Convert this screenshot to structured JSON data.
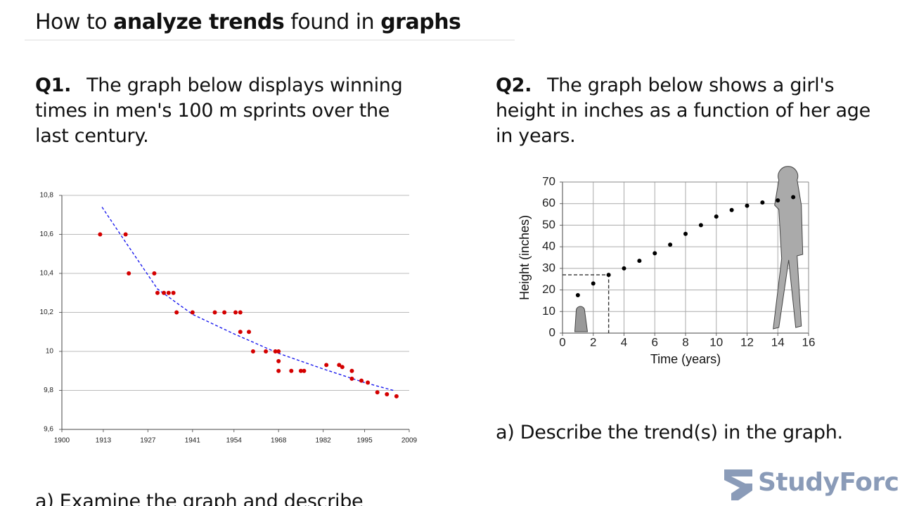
{
  "header": {
    "title": [
      "How to ",
      "analyze trends",
      " found in ",
      "graphs"
    ]
  },
  "q1": {
    "label": "Q1.",
    "text": "The graph below displays winning times in men's 100 m sprints over the last century.",
    "chart": {
      "type": "scatter",
      "xlim": [
        1900,
        2009
      ],
      "xticks": [
        1900,
        1913,
        1927,
        1941,
        1954,
        1968,
        1982,
        1995,
        2009
      ],
      "ylim": [
        9.6,
        10.8
      ],
      "yticks": [
        {
          "value": 9.6,
          "label": "9,6"
        },
        {
          "value": 9.8,
          "label": "9,8"
        },
        10,
        {
          "value": 10.2,
          "label": "10,2"
        },
        {
          "value": 10.4,
          "label": "10,4"
        },
        {
          "value": 10.6,
          "label": "10,6"
        },
        {
          "value": 10.8,
          "label": "10,8"
        }
      ],
      "grid": true,
      "color": "#d40000",
      "x": [
        1912,
        1920,
        1921,
        1929,
        1930,
        1932,
        1933.5,
        1935,
        1936,
        1941,
        1948,
        1951,
        1954.5,
        1956,
        1956,
        1958.7,
        1960,
        1964,
        1967,
        1968,
        1968,
        1968,
        1972,
        1975,
        1976,
        1983,
        1987,
        1988,
        1991,
        1991,
        1994,
        1996,
        1999,
        2002,
        2005
      ],
      "y": [
        10.6,
        10.6,
        10.4,
        10.4,
        10.3,
        10.3,
        10.3,
        10.3,
        10.2,
        10.2,
        10.2,
        10.2,
        10.2,
        10.2,
        10.1,
        10.1,
        10.0,
        10.0,
        10.0,
        10.0,
        9.95,
        9.9,
        9.9,
        9.9,
        9.9,
        9.93,
        9.93,
        9.92,
        9.9,
        9.86,
        9.85,
        9.84,
        9.79,
        9.78,
        9.77
      ],
      "trend": {
        "color": "#1a1aee",
        "x": [
          1912.6,
          1920,
          1930,
          1941,
          1954,
          1968,
          1982,
          1995,
          2004
        ],
        "y": [
          10.74,
          10.56,
          10.32,
          10.19,
          10.09,
          9.99,
          9.91,
          9.84,
          9.8
        ]
      }
    },
    "question": "a)  Examine the graph and describe"
  },
  "q2": {
    "label": "Q2.",
    "text": "The graph below shows a girl's height in inches as a function of her age in years.",
    "chart": {
      "type": "scatter",
      "x_label": "Time (years)",
      "y_label": "Height (inches)",
      "xlim": [
        0,
        16
      ],
      "xticks": [
        0,
        2,
        4,
        6,
        8,
        10,
        12,
        14,
        16
      ],
      "ylim": [
        0,
        70
      ],
      "yticks": [
        0,
        10,
        20,
        30,
        40,
        50,
        60,
        70
      ],
      "grid": true,
      "color": "#000000",
      "x": [
        1,
        2,
        3,
        4,
        5,
        6,
        7,
        8,
        9,
        10,
        11,
        12,
        13,
        14,
        15
      ],
      "y": [
        17.6,
        23,
        27,
        30,
        33.5,
        37,
        41,
        46,
        50,
        54,
        57,
        59,
        60.5,
        61.5,
        63
      ]
    },
    "question": "a)  Describe the trend(s) in the graph."
  },
  "logo": "StudyForce"
}
